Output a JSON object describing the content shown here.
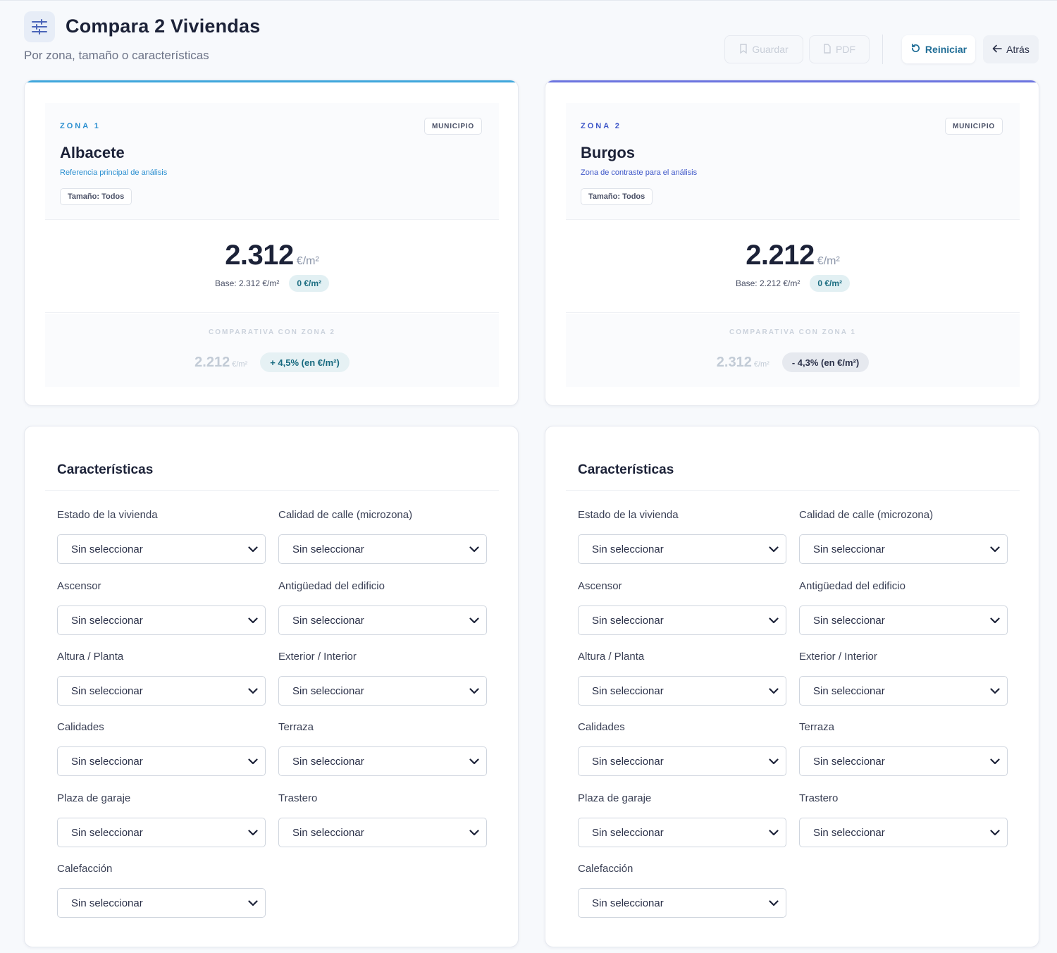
{
  "header": {
    "title": "Compara 2 Viviendas",
    "subtitle": "Por zona, tamaño o características",
    "buttons": {
      "save": "Guardar",
      "pdf": "PDF",
      "reset": "Reiniciar",
      "back": "Atrás"
    }
  },
  "colors": {
    "zone1_accent": "#3fa7dc",
    "zone2_accent": "#6b74e0",
    "zone1_label": "#2b8fd0",
    "zone2_label": "#3d56c8",
    "reset_text": "#1f6d96"
  },
  "zones": [
    {
      "label": "ZONA 1",
      "badge": "MUNICIPIO",
      "name": "Albacete",
      "description": "Referencia principal de análisis",
      "size": "Tamaño: Todos",
      "price": "2.312",
      "unit": "€/m²",
      "base": "Base: 2.312 €/m²",
      "delta": "0 €/m²",
      "compare_label": "COMPARATIVA CON ZONA 2",
      "compare_value": "2.212",
      "compare_unit": "€/m²",
      "compare_pct": "+ 4,5% (en €/m²)"
    },
    {
      "label": "ZONA 2",
      "badge": "MUNICIPIO",
      "name": "Burgos",
      "description": "Zona de contraste para el análisis",
      "size": "Tamaño: Todos",
      "price": "2.212",
      "unit": "€/m²",
      "base": "Base: 2.212 €/m²",
      "delta": "0 €/m²",
      "compare_label": "COMPARATIVA CON ZONA 1",
      "compare_value": "2.312",
      "compare_unit": "€/m²",
      "compare_pct": "- 4,3% (en €/m²)"
    }
  ],
  "features": {
    "title": "Características",
    "fields": [
      {
        "label": "Estado de la vivienda",
        "value": "Sin seleccionar"
      },
      {
        "label": "Calidad de calle (microzona)",
        "value": "Sin seleccionar"
      },
      {
        "label": "Ascensor",
        "value": "Sin seleccionar"
      },
      {
        "label": "Antigüedad del edificio",
        "value": "Sin seleccionar"
      },
      {
        "label": "Altura / Planta",
        "value": "Sin seleccionar"
      },
      {
        "label": "Exterior / Interior",
        "value": "Sin seleccionar"
      },
      {
        "label": "Calidades",
        "value": "Sin seleccionar"
      },
      {
        "label": "Terraza",
        "value": "Sin seleccionar"
      },
      {
        "label": "Plaza de garaje",
        "value": "Sin seleccionar"
      },
      {
        "label": "Trastero",
        "value": "Sin seleccionar"
      },
      {
        "label": "Calefacción",
        "value": "Sin seleccionar"
      }
    ]
  }
}
